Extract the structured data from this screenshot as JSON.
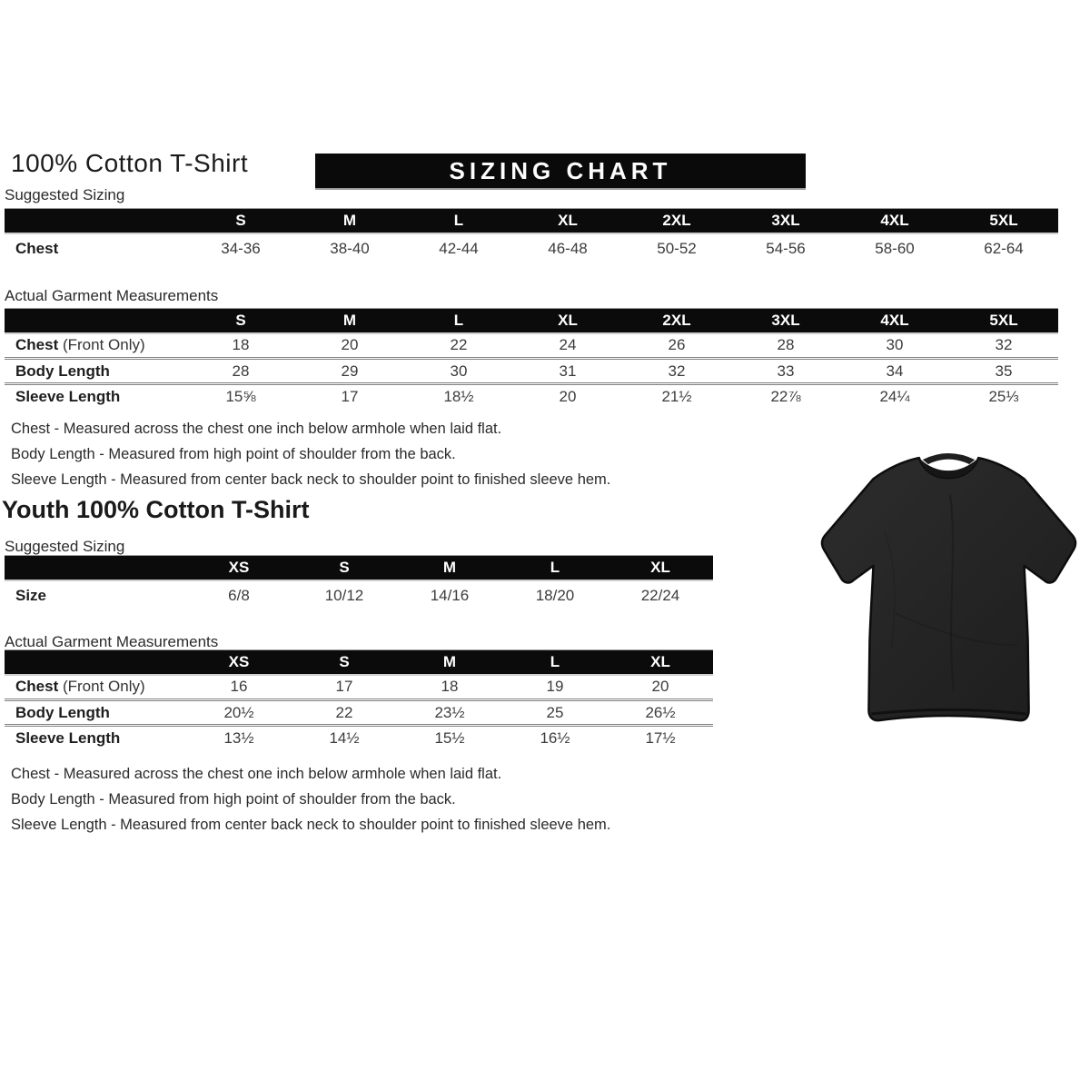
{
  "adult": {
    "title": "100% Cotton T-Shirt",
    "banner": "SIZING CHART",
    "suggested_label": "Suggested Sizing",
    "suggested_table": {
      "columns": [
        "S",
        "M",
        "L",
        "XL",
        "2XL",
        "3XL",
        "4XL",
        "5XL"
      ],
      "rows": [
        {
          "label": "Chest",
          "values": [
            "34-36",
            "38-40",
            "42-44",
            "46-48",
            "50-52",
            "54-56",
            "58-60",
            "62-64"
          ]
        }
      ]
    },
    "actual_label": "Actual Garment Measurements",
    "actual_table": {
      "columns": [
        "S",
        "M",
        "L",
        "XL",
        "2XL",
        "3XL",
        "4XL",
        "5XL"
      ],
      "rows": [
        {
          "label": "Chest",
          "label_suffix": "(Front Only)",
          "values": [
            "18",
            "20",
            "22",
            "24",
            "26",
            "28",
            "30",
            "32"
          ]
        },
        {
          "label": "Body Length",
          "values": [
            "28",
            "29",
            "30",
            "31",
            "32",
            "33",
            "34",
            "35"
          ]
        },
        {
          "label": "Sleeve Length",
          "values": [
            "15⅝",
            "17",
            "18½",
            "20",
            "21½",
            "22⅞",
            "24¼",
            "25⅓"
          ]
        }
      ]
    },
    "notes": [
      "Chest - Measured across the chest one inch below armhole when laid flat.",
      "Body Length - Measured from high point of shoulder from the back.",
      "Sleeve Length - Measured from center back neck to shoulder point to finished sleeve hem."
    ]
  },
  "youth": {
    "title": "Youth 100% Cotton T-Shirt",
    "suggested_label": "Suggested Sizing",
    "suggested_table": {
      "columns": [
        "XS",
        "S",
        "M",
        "L",
        "XL"
      ],
      "rows": [
        {
          "label": "Size",
          "values": [
            "6/8",
            "10/12",
            "14/16",
            "18/20",
            "22/24"
          ]
        }
      ]
    },
    "actual_label": "Actual Garment Measurements",
    "actual_table": {
      "columns": [
        "XS",
        "S",
        "M",
        "L",
        "XL"
      ],
      "rows": [
        {
          "label": "Chest",
          "label_suffix": "(Front Only)",
          "values": [
            "16",
            "17",
            "18",
            "19",
            "20"
          ]
        },
        {
          "label": "Body Length",
          "values": [
            "20½",
            "22",
            "23½",
            "25",
            "26½"
          ]
        },
        {
          "label": "Sleeve Length",
          "values": [
            "13½",
            "14½",
            "15½",
            "16½",
            "17½"
          ]
        }
      ]
    },
    "notes": [
      "Chest - Measured across the chest one inch below armhole when laid flat.",
      "Body Length - Measured from high point of shoulder from the back.",
      "Sleeve Length - Measured from center back neck to shoulder point to finished sleeve hem."
    ]
  },
  "tshirt_image": {
    "description": "black short-sleeve crew-neck t-shirt",
    "shirt_color": "#262626"
  },
  "colors": {
    "header_bar_bg": "#0b0b0b",
    "header_bar_text": "#ffffff",
    "body_text": "#2d2d2d"
  }
}
